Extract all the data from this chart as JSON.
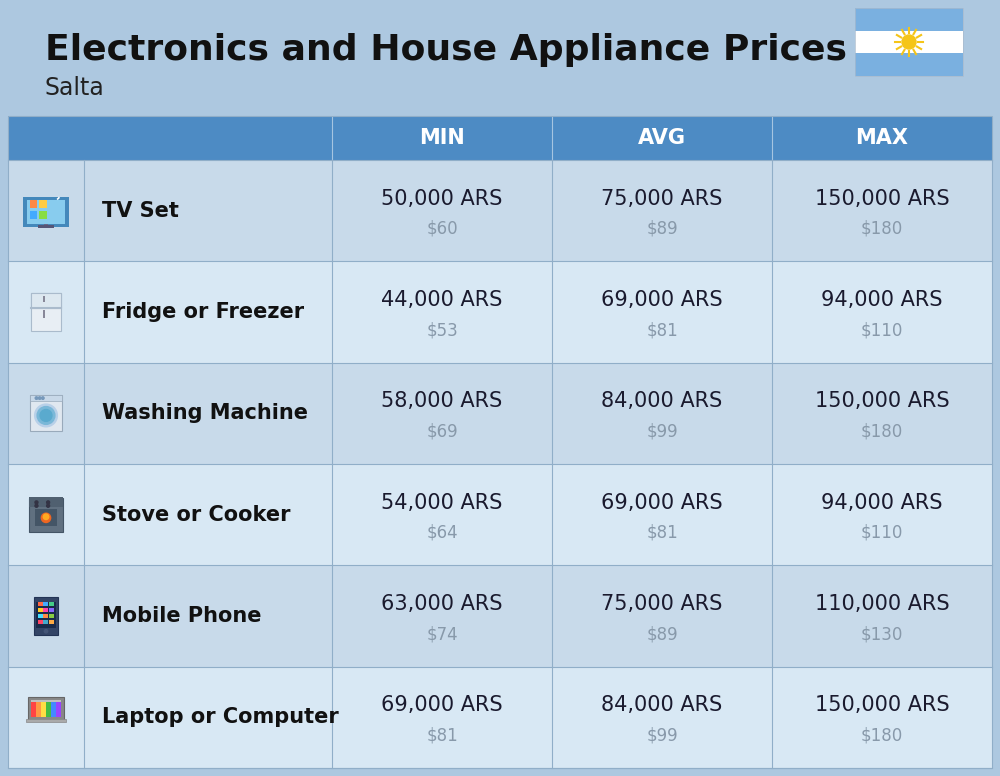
{
  "title": "Electronics and House Appliance Prices",
  "subtitle": "Salta",
  "bg_color": "#adc8e0",
  "header_color": "#4d8bc4",
  "row_bg_even": "#c8daea",
  "row_bg_odd": "#d8e8f4",
  "header_text_color": "#ffffff",
  "divider_color": "#90aec8",
  "name_text_color": "#111111",
  "ars_text_color": "#1a1a2e",
  "usd_text_color": "#8899aa",
  "items": [
    {
      "name": "TV Set",
      "min_ars": "50,000 ARS",
      "min_usd": "$60",
      "avg_ars": "75,000 ARS",
      "avg_usd": "$89",
      "max_ars": "150,000 ARS",
      "max_usd": "$180",
      "icon": "tv"
    },
    {
      "name": "Fridge or Freezer",
      "min_ars": "44,000 ARS",
      "min_usd": "$53",
      "avg_ars": "69,000 ARS",
      "avg_usd": "$81",
      "max_ars": "94,000 ARS",
      "max_usd": "$110",
      "icon": "fridge"
    },
    {
      "name": "Washing Machine",
      "min_ars": "58,000 ARS",
      "min_usd": "$69",
      "avg_ars": "84,000 ARS",
      "avg_usd": "$99",
      "max_ars": "150,000 ARS",
      "max_usd": "$180",
      "icon": "washing"
    },
    {
      "name": "Stove or Cooker",
      "min_ars": "54,000 ARS",
      "min_usd": "$64",
      "avg_ars": "69,000 ARS",
      "avg_usd": "$81",
      "max_ars": "94,000 ARS",
      "max_usd": "$110",
      "icon": "stove"
    },
    {
      "name": "Mobile Phone",
      "min_ars": "63,000 ARS",
      "min_usd": "$74",
      "avg_ars": "75,000 ARS",
      "avg_usd": "$89",
      "max_ars": "110,000 ARS",
      "max_usd": "$130",
      "icon": "phone"
    },
    {
      "name": "Laptop or Computer",
      "min_ars": "69,000 ARS",
      "min_usd": "$81",
      "avg_ars": "84,000 ARS",
      "avg_usd": "$99",
      "max_ars": "150,000 ARS",
      "max_usd": "$180",
      "icon": "laptop"
    }
  ],
  "col_headers": [
    "MIN",
    "AVG",
    "MAX"
  ],
  "flag_stripes": [
    "#7ab0e0",
    "#ffffff",
    "#7ab0e0"
  ],
  "flag_sun_color": "#f5c518",
  "title_fontsize": 26,
  "subtitle_fontsize": 17,
  "header_fontsize": 15,
  "item_name_fontsize": 15,
  "ars_fontsize": 15,
  "usd_fontsize": 12
}
